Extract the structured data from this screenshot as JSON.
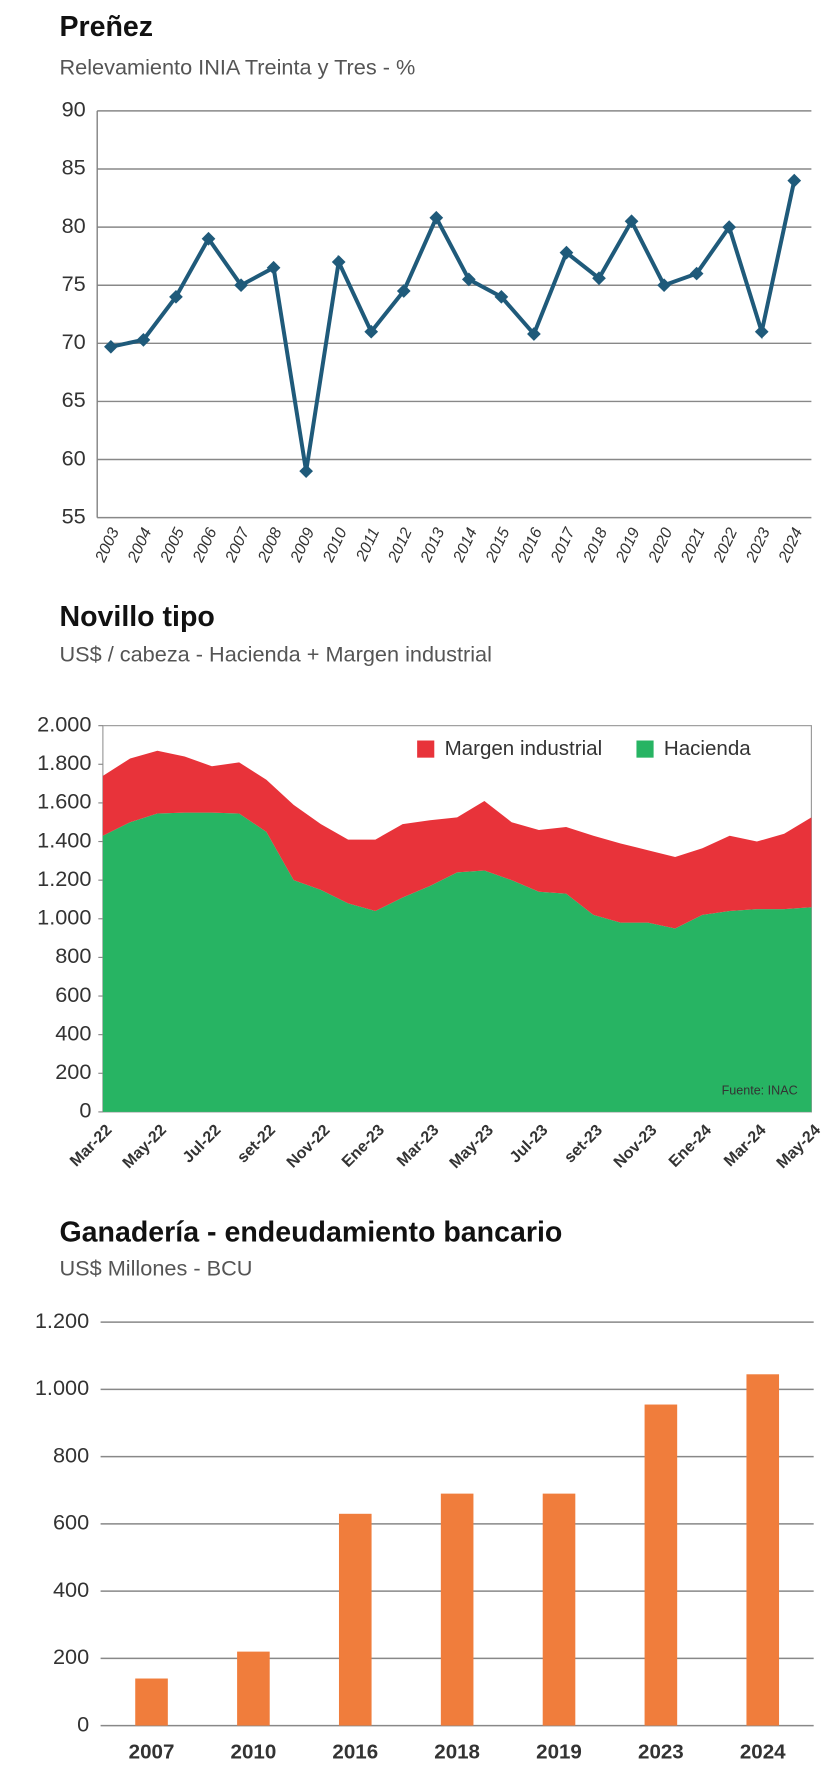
{
  "chart_data": [
    {
      "type": "line",
      "title": "Preñez",
      "subtitle": "Relevamiento INIA Treinta y Tres - %",
      "categories": [
        "2003",
        "2004",
        "2005",
        "2006",
        "2007",
        "2008",
        "2009",
        "2010",
        "2011",
        "2012",
        "2013",
        "2014",
        "2015",
        "2016",
        "2017",
        "2018",
        "2019",
        "2020",
        "2021",
        "2022",
        "2023",
        "2024"
      ],
      "values": [
        69.7,
        70.3,
        74,
        79,
        75,
        76.5,
        59,
        77,
        71,
        74.5,
        80.8,
        75.5,
        74,
        70.8,
        77.8,
        75.6,
        80.5,
        75,
        76,
        80,
        71,
        84
      ],
      "color": "#1f5a7a",
      "ylim": [
        55,
        90
      ],
      "yticks": [
        55,
        60,
        65,
        70,
        75,
        80,
        85,
        90
      ],
      "grid": true
    },
    {
      "type": "area",
      "title": "Novillo tipo",
      "subtitle": "US$ / cabeza - Hacienda + Margen industrial",
      "categories": [
        "Mar-22",
        null,
        "May-22",
        null,
        "Jul-22",
        null,
        "set-22",
        null,
        "Nov-22",
        null,
        "Ene-23",
        null,
        "Mar-23",
        null,
        "May-23",
        null,
        "Jul-23",
        null,
        "set-23",
        null,
        "Nov-23",
        null,
        "Ene-24",
        null,
        "Mar-24",
        null,
        "May-24"
      ],
      "stacked": true,
      "legend": "upper right",
      "annotation": "Fuente: INAC",
      "series": [
        {
          "name": "Margen industrial",
          "color": "#e8333a",
          "values": [
            310,
            330,
            325,
            290,
            240,
            265,
            270,
            390,
            340,
            330,
            370,
            380,
            340,
            285,
            360,
            300,
            320,
            345,
            410,
            410,
            375,
            370,
            345,
            390,
            350,
            390,
            465
          ]
        },
        {
          "name": "Hacienda",
          "color": "#27b463",
          "values": [
            1430,
            1500,
            1545,
            1550,
            1550,
            1545,
            1450,
            1200,
            1150,
            1080,
            1040,
            1110,
            1170,
            1240,
            1250,
            1200,
            1140,
            1130,
            1020,
            980,
            980,
            950,
            1020,
            1040,
            1050,
            1050,
            1060
          ]
        }
      ],
      "ylim": [
        0,
        2000
      ],
      "yticks": [
        0,
        200,
        400,
        600,
        800,
        {
          "value": 1000,
          "label": "1.000"
        },
        {
          "value": 1200,
          "label": "1.200"
        },
        {
          "value": 1400,
          "label": "1.400"
        },
        {
          "value": 1600,
          "label": "1.600"
        },
        {
          "value": 1800,
          "label": "1.800"
        },
        {
          "value": 2000,
          "label": "2.000"
        }
      ],
      "grid": false
    },
    {
      "type": "bar",
      "title": "Ganadería - endeudamiento bancario",
      "subtitle": "US$ Millones - BCU",
      "categories": [
        "2007",
        "2010",
        "2016",
        "2018",
        "2019",
        "2023",
        "2024"
      ],
      "values": [
        140,
        220,
        630,
        690,
        690,
        955,
        1045
      ],
      "color": "#f07d3c",
      "ylim": [
        0,
        1200
      ],
      "yticks": [
        0,
        200,
        400,
        600,
        800,
        {
          "value": 1000,
          "label": "1.000"
        },
        {
          "value": 1200,
          "label": "1.200"
        }
      ],
      "grid": true
    }
  ]
}
